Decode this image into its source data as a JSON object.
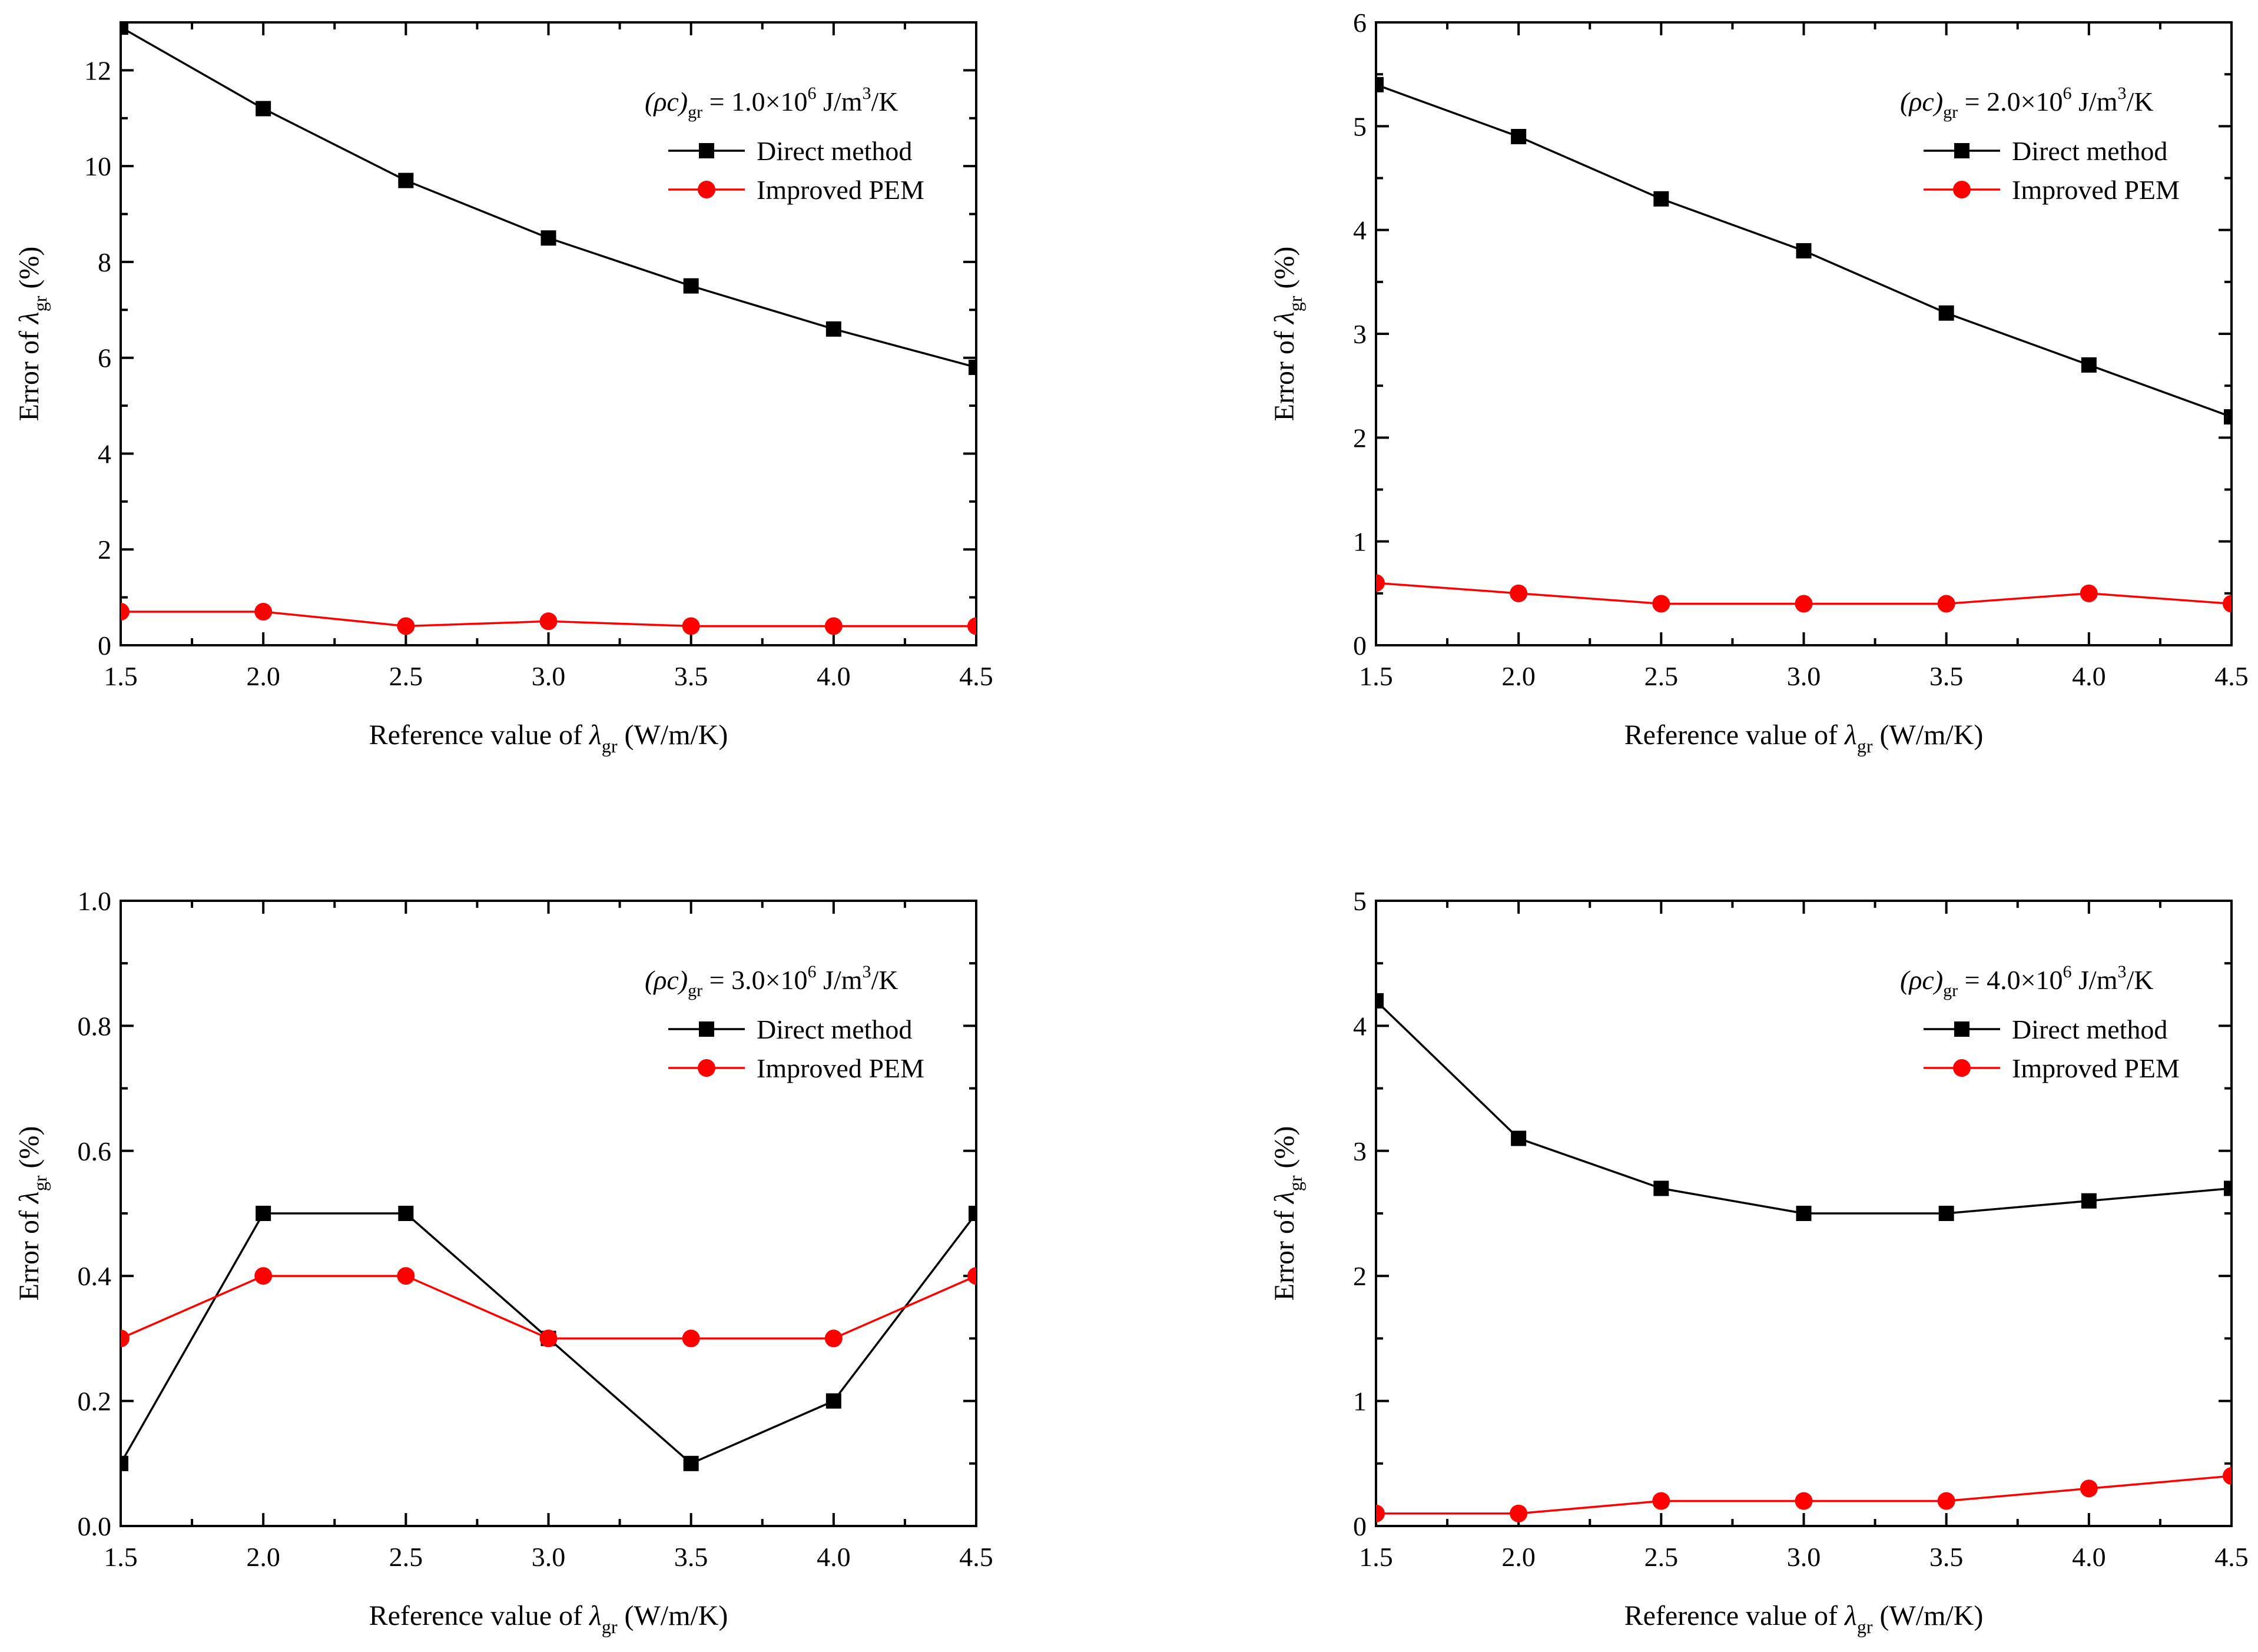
{
  "colors": {
    "direct": "#000000",
    "pem": "#ff0000",
    "axis": "#000000",
    "background": "#ffffff"
  },
  "chart_data": [
    {
      "type": "line",
      "panel": "top-left",
      "annotation": {
        "prefix": "(ρc)",
        "prefix_sub": "gr",
        "value": " = 1.0×10",
        "exponent": "6",
        "unit_a": " J/m",
        "unit_exp": "3",
        "unit_b": "/K"
      },
      "xlabel": {
        "pre": "Reference value of ",
        "sym": "λ",
        "sub": "gr",
        "post": " (W/m/K)"
      },
      "ylabel": {
        "pre": "Error of ",
        "sym": "λ",
        "sub": "gr",
        "post": " (%)"
      },
      "x": [
        1.5,
        2.0,
        2.5,
        3.0,
        3.5,
        4.0,
        4.5
      ],
      "xlim": [
        1.5,
        4.5
      ],
      "ylim": [
        0,
        13
      ],
      "x_ticks": [
        "1.5",
        "2.0",
        "2.5",
        "3.0",
        "3.5",
        "4.0",
        "4.5"
      ],
      "x_tick_values": [
        1.5,
        2.0,
        2.5,
        3.0,
        3.5,
        4.0,
        4.5
      ],
      "y_ticks": [
        "0",
        "2",
        "4",
        "6",
        "8",
        "10",
        "12"
      ],
      "y_tick_values": [
        0,
        2,
        4,
        6,
        8,
        10,
        12
      ],
      "y_minor_step": 1,
      "legend_position": "top-right",
      "series": [
        {
          "name": "Direct method",
          "marker": "square",
          "values": [
            12.9,
            11.2,
            9.7,
            8.5,
            7.5,
            6.6,
            5.8
          ]
        },
        {
          "name": "Improved PEM",
          "marker": "circle",
          "values": [
            0.7,
            0.7,
            0.4,
            0.5,
            0.4,
            0.4,
            0.4
          ]
        }
      ]
    },
    {
      "type": "line",
      "panel": "top-right",
      "annotation": {
        "prefix": "(ρc)",
        "prefix_sub": "gr",
        "value": " = 2.0×10",
        "exponent": "6",
        "unit_a": " J/m",
        "unit_exp": "3",
        "unit_b": "/K"
      },
      "xlabel": {
        "pre": "Reference value of ",
        "sym": "λ",
        "sub": "gr",
        "post": " (W/m/K)"
      },
      "ylabel": {
        "pre": "Error of ",
        "sym": "λ",
        "sub": "gr",
        "post": " (%)"
      },
      "x": [
        1.5,
        2.0,
        2.5,
        3.0,
        3.5,
        4.0,
        4.5
      ],
      "xlim": [
        1.5,
        4.5
      ],
      "ylim": [
        0,
        6
      ],
      "x_ticks": [
        "1.5",
        "2.0",
        "2.5",
        "3.0",
        "3.5",
        "4.0",
        "4.5"
      ],
      "x_tick_values": [
        1.5,
        2.0,
        2.5,
        3.0,
        3.5,
        4.0,
        4.5
      ],
      "y_ticks": [
        "0",
        "1",
        "2",
        "3",
        "4",
        "5",
        "6"
      ],
      "y_tick_values": [
        0,
        1,
        2,
        3,
        4,
        5,
        6
      ],
      "y_minor_step": 0.5,
      "legend_position": "top-right",
      "series": [
        {
          "name": "Direct method",
          "marker": "square",
          "values": [
            5.4,
            4.9,
            4.3,
            3.8,
            3.2,
            2.7,
            2.2
          ]
        },
        {
          "name": "Improved PEM",
          "marker": "circle",
          "values": [
            0.6,
            0.5,
            0.4,
            0.4,
            0.4,
            0.5,
            0.4
          ]
        }
      ]
    },
    {
      "type": "line",
      "panel": "bottom-left",
      "annotation": {
        "prefix": "(ρc)",
        "prefix_sub": "gr",
        "value": " = 3.0×10",
        "exponent": "6",
        "unit_a": " J/m",
        "unit_exp": "3",
        "unit_b": "/K"
      },
      "xlabel": {
        "pre": "Reference value of ",
        "sym": "λ",
        "sub": "gr",
        "post": " (W/m/K)"
      },
      "ylabel": {
        "pre": "Error of ",
        "sym": "λ",
        "sub": "gr",
        "post": " (%)"
      },
      "x": [
        1.5,
        2.0,
        2.5,
        3.0,
        3.5,
        4.0,
        4.5
      ],
      "xlim": [
        1.5,
        4.5
      ],
      "ylim": [
        0,
        1.0
      ],
      "x_ticks": [
        "1.5",
        "2.0",
        "2.5",
        "3.0",
        "3.5",
        "4.0",
        "4.5"
      ],
      "x_tick_values": [
        1.5,
        2.0,
        2.5,
        3.0,
        3.5,
        4.0,
        4.5
      ],
      "y_ticks": [
        "0.0",
        "0.2",
        "0.4",
        "0.6",
        "0.8",
        "1.0"
      ],
      "y_tick_values": [
        0,
        0.2,
        0.4,
        0.6,
        0.8,
        1.0
      ],
      "y_minor_step": 0.1,
      "legend_position": "top-right",
      "series": [
        {
          "name": "Direct method",
          "marker": "square",
          "values": [
            0.1,
            0.5,
            0.5,
            0.3,
            0.1,
            0.2,
            0.5
          ]
        },
        {
          "name": "Improved PEM",
          "marker": "circle",
          "values": [
            0.3,
            0.4,
            0.4,
            0.3,
            0.3,
            0.3,
            0.4
          ]
        }
      ]
    },
    {
      "type": "line",
      "panel": "bottom-right",
      "annotation": {
        "prefix": "(ρc)",
        "prefix_sub": "gr",
        "value": " = 4.0×10",
        "exponent": "6",
        "unit_a": " J/m",
        "unit_exp": "3",
        "unit_b": "/K"
      },
      "xlabel": {
        "pre": "Reference value of ",
        "sym": "λ",
        "sub": "gr",
        "post": " (W/m/K)"
      },
      "ylabel": {
        "pre": "Error of ",
        "sym": "λ",
        "sub": "gr",
        "post": " (%)"
      },
      "x": [
        1.5,
        2.0,
        2.5,
        3.0,
        3.5,
        4.0,
        4.5
      ],
      "xlim": [
        1.5,
        4.5
      ],
      "ylim": [
        0,
        5
      ],
      "x_ticks": [
        "1.5",
        "2.0",
        "2.5",
        "3.0",
        "3.5",
        "4.0",
        "4.5"
      ],
      "x_tick_values": [
        1.5,
        2.0,
        2.5,
        3.0,
        3.5,
        4.0,
        4.5
      ],
      "y_ticks": [
        "0",
        "1",
        "2",
        "3",
        "4",
        "5"
      ],
      "y_tick_values": [
        0,
        1,
        2,
        3,
        4,
        5
      ],
      "y_minor_step": 0.5,
      "legend_position": "top-right",
      "series": [
        {
          "name": "Direct method",
          "marker": "square",
          "values": [
            4.2,
            3.1,
            2.7,
            2.5,
            2.5,
            2.6,
            2.7
          ]
        },
        {
          "name": "Improved PEM",
          "marker": "circle",
          "values": [
            0.1,
            0.1,
            0.2,
            0.2,
            0.2,
            0.3,
            0.4
          ]
        }
      ]
    }
  ]
}
